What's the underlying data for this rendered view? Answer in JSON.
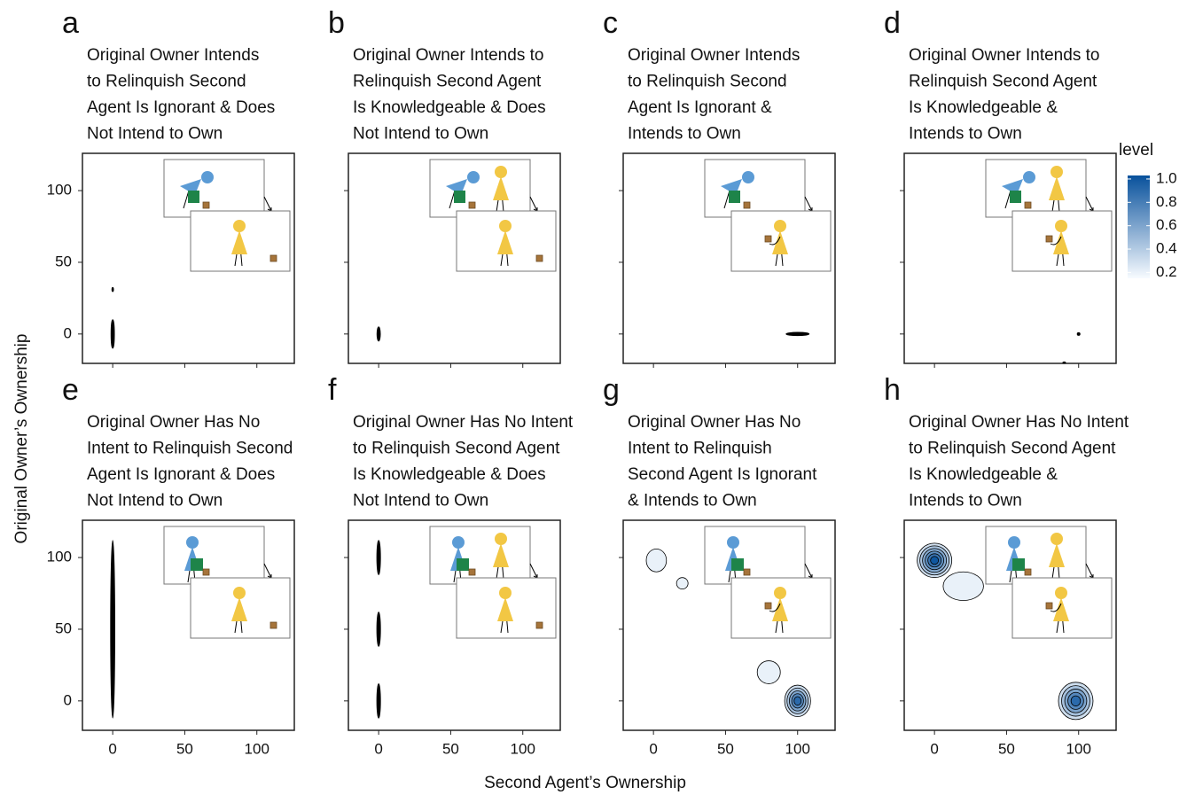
{
  "figure": {
    "x_label": "Second Agent’s Ownership",
    "y_label": "Original Owner’s Ownership",
    "legend": {
      "title": "level",
      "lim": [
        0.15,
        1.03
      ],
      "ticks": [
        1.0,
        0.8,
        0.6,
        0.4,
        0.2
      ],
      "tick_labels": [
        "1.0",
        "0.8",
        "0.6",
        "0.4",
        "0.2"
      ],
      "colors": [
        "#f7fbff",
        "#08519c"
      ]
    }
  },
  "chart_data": [
    {
      "type": "density",
      "letter": "a",
      "title": [
        "Original Owner Intends",
        "to Relinquish Second",
        "Agent Is Ignorant & Does",
        "Not Intend to Own"
      ],
      "xlim": [
        -21,
        126
      ],
      "ylim": [
        -20.5,
        126
      ],
      "xticks": [
        0,
        50,
        100
      ],
      "yticks": [
        0,
        50,
        100
      ],
      "blobs": [
        {
          "x": 0,
          "y": 0,
          "x_spread": 1.2,
          "y_spread": 10,
          "level": 0.1
        },
        {
          "x": 0,
          "y": 31,
          "x_spread": 0.6,
          "y_spread": 1.5,
          "level": 0.1
        }
      ]
    },
    {
      "type": "density",
      "letter": "b",
      "title": [
        "Original Owner Intends to",
        "Relinquish Second Agent",
        "Is Knowledgeable & Does",
        "Not Intend to Own"
      ],
      "xlim": [
        -21,
        126
      ],
      "ylim": [
        -20.5,
        126
      ],
      "xticks": [
        0,
        50,
        100
      ],
      "yticks": [
        0,
        50,
        100
      ],
      "blobs": [
        {
          "x": 0,
          "y": 0,
          "x_spread": 1.2,
          "y_spread": 5,
          "level": 0.1
        }
      ]
    },
    {
      "type": "density",
      "letter": "c",
      "title": [
        "Original Owner Intends",
        "to Relinquish Second",
        "Agent Is Ignorant &",
        "Intends to Own"
      ],
      "xlim": [
        -21,
        126
      ],
      "ylim": [
        -20.5,
        126
      ],
      "xticks": [
        0,
        50,
        100
      ],
      "yticks": [
        0,
        50,
        100
      ],
      "blobs": [
        {
          "x": 100,
          "y": 0,
          "x_spread": 8,
          "y_spread": 1.2,
          "level": 0.1
        }
      ]
    },
    {
      "type": "density",
      "letter": "d",
      "title": [
        "Original Owner Intends to",
        "Relinquish Second Agent",
        "Is Knowledgeable &",
        "Intends to Own"
      ],
      "xlim": [
        -21,
        126
      ],
      "ylim": [
        -20.5,
        126
      ],
      "xticks": [
        0,
        50,
        100
      ],
      "yticks": [
        0,
        50,
        100
      ],
      "blobs": [
        {
          "x": 100,
          "y": 0,
          "x_spread": 1,
          "y_spread": 1,
          "level": 0.1
        },
        {
          "x": 90,
          "y": -20,
          "x_spread": 1,
          "y_spread": 0.6,
          "level": 0.1
        }
      ]
    },
    {
      "type": "density",
      "letter": "e",
      "title": [
        "Original Owner Has No",
        "Intent to Relinquish Second",
        "Agent Is Ignorant & Does",
        "Not Intend to Own"
      ],
      "xlim": [
        -21,
        126
      ],
      "ylim": [
        -20.5,
        126
      ],
      "xticks": [
        0,
        50,
        100
      ],
      "yticks": [
        0,
        50,
        100
      ],
      "blobs": [
        {
          "x": 0,
          "y": 50,
          "x_spread": 1.5,
          "y_spread": 62,
          "level": 0.1
        }
      ]
    },
    {
      "type": "density",
      "letter": "f",
      "title": [
        "Original Owner Has No Intent",
        "to Relinquish Second Agent",
        "Is Knowledgeable & Does",
        "Not Intend to Own"
      ],
      "xlim": [
        -21,
        126
      ],
      "ylim": [
        -20.5,
        126
      ],
      "xticks": [
        0,
        50,
        100
      ],
      "yticks": [
        0,
        50,
        100
      ],
      "blobs": [
        {
          "x": 0,
          "y": 100,
          "x_spread": 1.3,
          "y_spread": 12,
          "level": 0.1
        },
        {
          "x": 0,
          "y": 50,
          "x_spread": 1.3,
          "y_spread": 12,
          "level": 0.1
        },
        {
          "x": 0,
          "y": 0,
          "x_spread": 1.3,
          "y_spread": 12,
          "level": 0.1
        }
      ]
    },
    {
      "type": "density",
      "letter": "g",
      "title": [
        "Original Owner Has No",
        "Intent to Relinquish",
        "Second Agent Is Ignorant",
        "& Intends to Own"
      ],
      "xlim": [
        -21,
        126
      ],
      "ylim": [
        -20.5,
        126
      ],
      "xticks": [
        0,
        50,
        100
      ],
      "yticks": [
        0,
        50,
        100
      ],
      "blobs": [
        {
          "x": 2,
          "y": 98,
          "x_spread": 7,
          "y_spread": 8,
          "level": 0.2
        },
        {
          "x": 20,
          "y": 82,
          "x_spread": 4,
          "y_spread": 4,
          "level": 0.2
        },
        {
          "x": 80,
          "y": 20,
          "x_spread": 8,
          "y_spread": 8,
          "level": 0.2
        },
        {
          "x": 100,
          "y": 0,
          "x_spread": 9,
          "y_spread": 11,
          "level": 0.9
        }
      ]
    },
    {
      "type": "density",
      "letter": "h",
      "title": [
        "Original Owner Has No Intent",
        "to Relinquish Second Agent",
        "Is Knowledgeable &",
        "Intends to Own"
      ],
      "xlim": [
        -21,
        126
      ],
      "ylim": [
        -20.5,
        126
      ],
      "xticks": [
        0,
        50,
        100
      ],
      "yticks": [
        0,
        50,
        100
      ],
      "blobs": [
        {
          "x": 20,
          "y": 80,
          "x_spread": 14,
          "y_spread": 10,
          "level": 0.2
        },
        {
          "x": 0,
          "y": 98,
          "x_spread": 12,
          "y_spread": 12,
          "level": 1.0
        },
        {
          "x": 98,
          "y": 0,
          "x_spread": 12,
          "y_spread": 13,
          "level": 0.9
        }
      ]
    }
  ]
}
